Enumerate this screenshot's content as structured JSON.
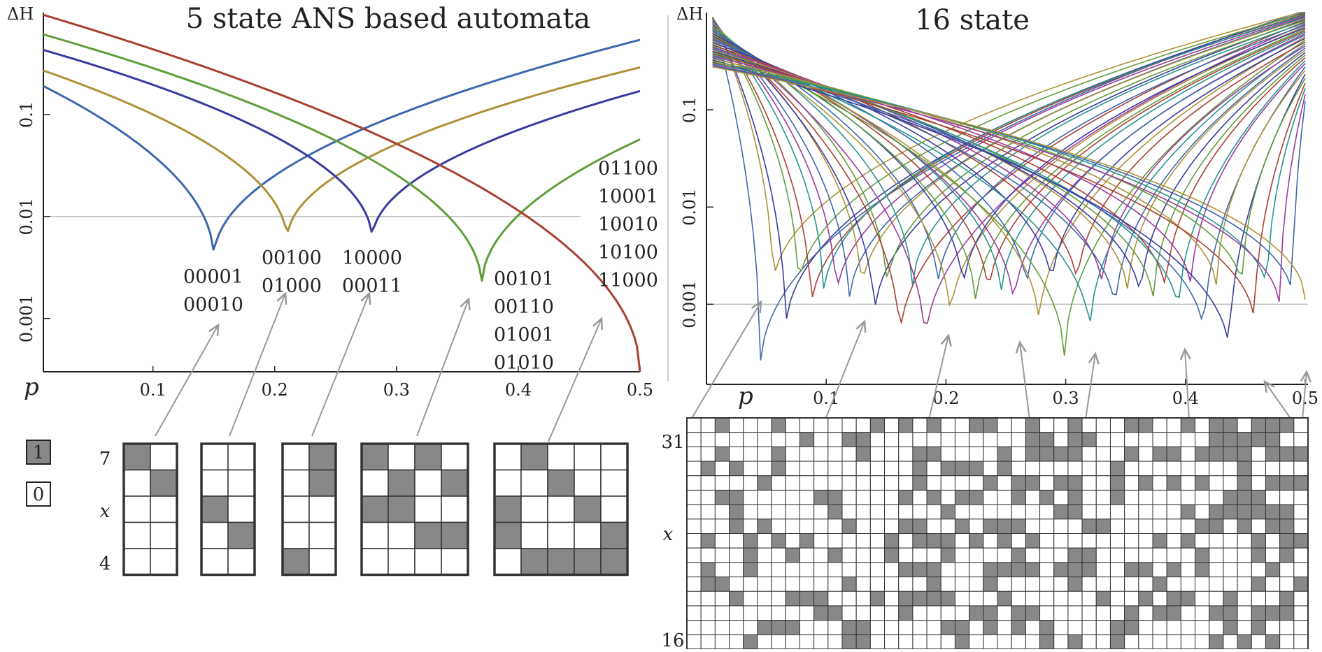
{
  "chart_data": [
    {
      "type": "line",
      "title": "5 state ANS based automata",
      "ylabel": "ΔH",
      "xlabel": "p",
      "yscale": "log",
      "xlim": [
        0.01,
        0.5
      ],
      "ylim": [
        0.0003,
        1.0
      ],
      "x_ticks": [
        "0.1",
        "0.2",
        "0.3",
        "0.4",
        "0.5"
      ],
      "y_ticks": [
        "0.001",
        "0.01",
        "0.1"
      ],
      "reference_line": 0.01,
      "series": [
        {
          "name": "00001 00010",
          "color": "#3d67ad",
          "min_p": 0.15,
          "min_dh": 0.0039,
          "start_dh": 0.19,
          "end_dh": 0.54
        },
        {
          "name": "00100 01000",
          "color": "#ad9138",
          "min_p": 0.21,
          "min_dh": 0.0058,
          "start_dh": 0.27,
          "end_dh": 0.29
        },
        {
          "name": "10000 00011",
          "color": "#3a3aa0",
          "min_p": 0.28,
          "min_dh": 0.0059,
          "start_dh": 0.43,
          "end_dh": 0.17
        },
        {
          "name": "00101 00110 01001 01010",
          "color": "#5f9d3a",
          "min_p": 0.37,
          "min_dh": 0.0021,
          "start_dh": 0.61,
          "end_dh": 0.057
        },
        {
          "name": "01100 10001 10010 10100 11000",
          "color": "#a84030",
          "min_p": 0.5,
          "min_dh": 0.0003,
          "start_dh": 0.95,
          "end_dh": 0.0003
        }
      ],
      "annotations": [
        {
          "lines": [
            "00001",
            "00010"
          ]
        },
        {
          "lines": [
            "00100",
            "01000"
          ]
        },
        {
          "lines": [
            "10000",
            "00011"
          ]
        },
        {
          "lines": [
            "00101",
            "00110",
            "01001",
            "01010"
          ]
        },
        {
          "lines": [
            "01100",
            "10001",
            "10010",
            "10100",
            "11000"
          ]
        }
      ],
      "grids": [
        {
          "cells": [
            [
              1,
              0
            ],
            [
              0,
              1
            ],
            [
              0,
              0
            ],
            [
              0,
              0
            ],
            [
              0,
              0
            ]
          ]
        },
        {
          "cells": [
            [
              0,
              0
            ],
            [
              0,
              0
            ],
            [
              1,
              0
            ],
            [
              0,
              1
            ],
            [
              0,
              0
            ]
          ]
        },
        {
          "cells": [
            [
              0,
              1
            ],
            [
              0,
              1
            ],
            [
              0,
              0
            ],
            [
              0,
              0
            ],
            [
              1,
              0
            ]
          ]
        },
        {
          "cells": [
            [
              1,
              0,
              1,
              0
            ],
            [
              0,
              1,
              0,
              1
            ],
            [
              1,
              1,
              0,
              0
            ],
            [
              0,
              0,
              1,
              1
            ],
            [
              0,
              0,
              0,
              0
            ]
          ]
        },
        {
          "cells": [
            [
              0,
              1,
              0,
              0,
              0
            ],
            [
              0,
              0,
              1,
              0,
              0
            ],
            [
              1,
              0,
              0,
              1,
              0
            ],
            [
              1,
              0,
              0,
              0,
              1
            ],
            [
              0,
              1,
              1,
              1,
              1
            ]
          ]
        }
      ],
      "row_labels": {
        "top": "7",
        "middle": "x",
        "bottom": "4"
      },
      "legend": [
        {
          "label": "1",
          "filled": true
        },
        {
          "label": "0",
          "filled": false
        }
      ]
    },
    {
      "type": "line",
      "title": "16 state",
      "ylabel": "ΔH",
      "xlabel": "p",
      "yscale": "log",
      "xlim": [
        0.0,
        0.5
      ],
      "ylim": [
        0.00015,
        1.0
      ],
      "x_ticks": [
        "0.1",
        "0.2",
        "0.3",
        "0.4",
        "0.5"
      ],
      "y_ticks": [
        "0.001",
        "0.01",
        "0.1"
      ],
      "reference_line": 0.001,
      "series_count": 44,
      "minima_p_range": [
        0.045,
        0.5
      ],
      "colors": [
        "#3d67ad",
        "#ad9138",
        "#3a3aa0",
        "#5f9d3a",
        "#a84030",
        "#26948f",
        "#9b3a9b"
      ],
      "grid_rows": 16,
      "grid_cols": 44,
      "grid_row_labels": {
        "top": "31",
        "middle": "x",
        "bottom": "16"
      }
    }
  ],
  "colors": {
    "cell_filled": "#888888",
    "cell_border": "#333333",
    "arrow": "#999999",
    "ref_line": "#bbbbbb"
  }
}
